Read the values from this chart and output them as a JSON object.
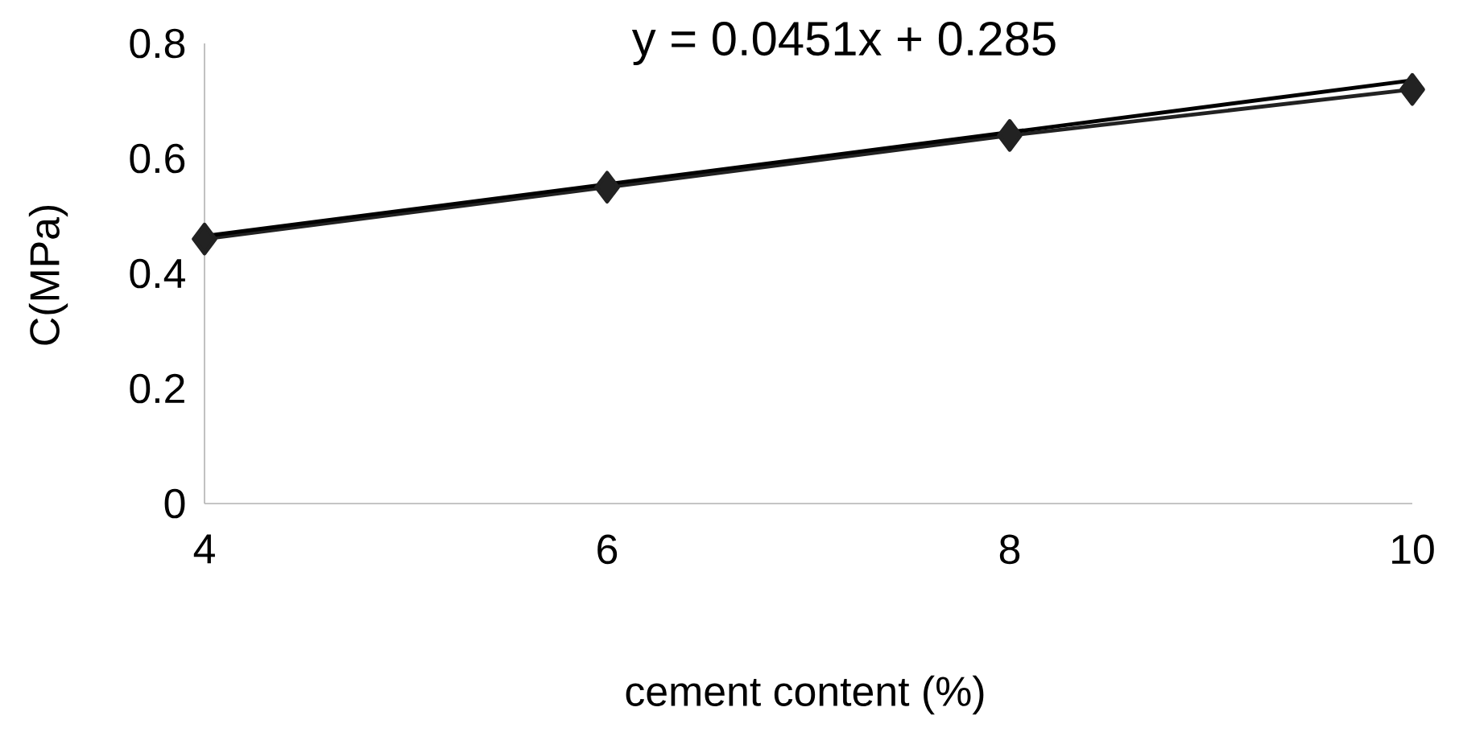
{
  "chart_data": {
    "type": "line",
    "xlabel": "cement content (%)",
    "ylabel": "C(MPa)",
    "annotations": [
      "y = 0.0451x + 0.285"
    ],
    "xlim": [
      4,
      10
    ],
    "xticks": [
      4,
      6,
      8,
      10
    ],
    "ylim": [
      0,
      0.8
    ],
    "yticks": [
      0,
      0.2,
      0.4,
      0.6,
      0.8
    ],
    "grid": false,
    "series": [
      {
        "color": "#222222",
        "marker": "diamond",
        "x": [
          4,
          6,
          8,
          10
        ],
        "values": [
          0.46,
          0.55,
          0.64,
          0.72
        ]
      },
      {
        "color": "#000000",
        "marker": "none",
        "x": [
          4,
          10
        ],
        "values": [
          0.465,
          0.736
        ]
      }
    ]
  }
}
